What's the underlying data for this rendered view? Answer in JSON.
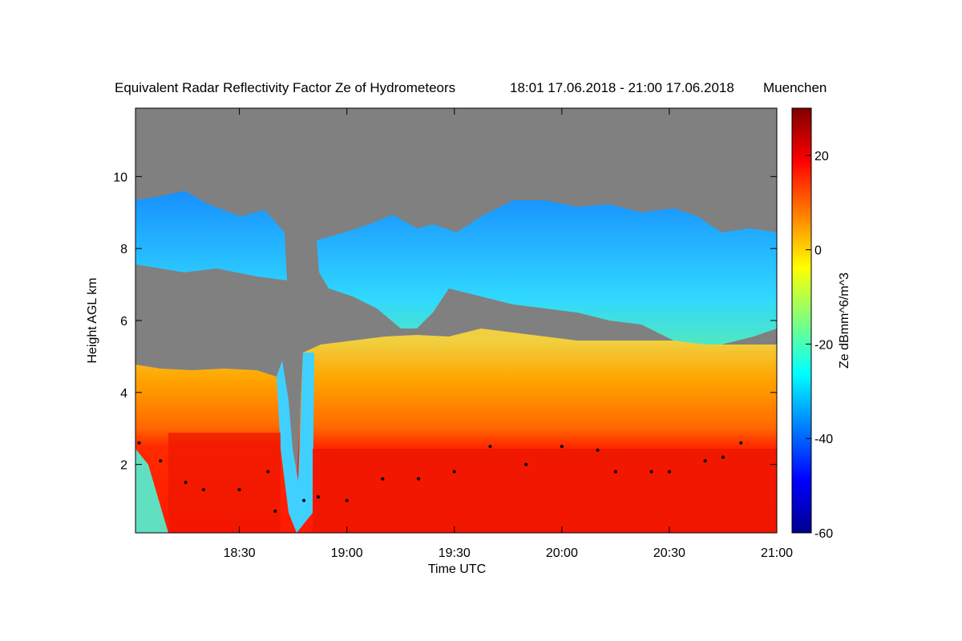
{
  "chart_data": {
    "type": "heatmap",
    "title": "Equivalent Radar Reflectivity Factor Ze of Hydrometeors",
    "time_range": "18:01 17.06.2018 - 21:00 17.06.2018",
    "location": "Muenchen",
    "xlabel": "Time UTC",
    "ylabel": "Height AGL km",
    "colorbar_label": "Ze dBmm^6/m^3",
    "xlim": [
      "18:01",
      "21:00"
    ],
    "ylim": [
      0.1,
      11.9
    ],
    "x_ticks": [
      "18:30",
      "19:00",
      "19:30",
      "20:00",
      "20:30",
      "21:00"
    ],
    "y_ticks": [
      2,
      4,
      6,
      8,
      10
    ],
    "colorbar_range": [
      -60,
      30
    ],
    "colorbar_ticks": [
      20,
      0,
      -20,
      -40,
      -60
    ],
    "colormap": "jet",
    "background_color": "#808080",
    "layers": [
      {
        "name": "rain",
        "ze_dbz": 20,
        "top_km": 2.5
      },
      {
        "name": "melting_layer",
        "ze_dbz": 10,
        "top_km": 5.0
      },
      {
        "name": "ice_cloud",
        "ze_dbz": -20,
        "top_km": 9.5
      }
    ],
    "cloud_base_series": {
      "x": [
        "18:02",
        "18:08",
        "18:15",
        "18:20",
        "18:30",
        "18:38",
        "18:40",
        "18:48",
        "18:52",
        "19:00",
        "19:10",
        "19:20",
        "19:30",
        "19:40",
        "19:50",
        "20:00",
        "20:10",
        "20:15",
        "20:25",
        "20:30",
        "20:40",
        "20:45",
        "20:50"
      ],
      "y": [
        2.6,
        2.1,
        1.5,
        1.3,
        1.3,
        1.8,
        0.7,
        1.0,
        1.1,
        1.0,
        1.6,
        1.6,
        1.8,
        2.5,
        2.0,
        2.5,
        2.4,
        1.8,
        1.8,
        1.8,
        2.1,
        2.2,
        2.6
      ]
    }
  }
}
